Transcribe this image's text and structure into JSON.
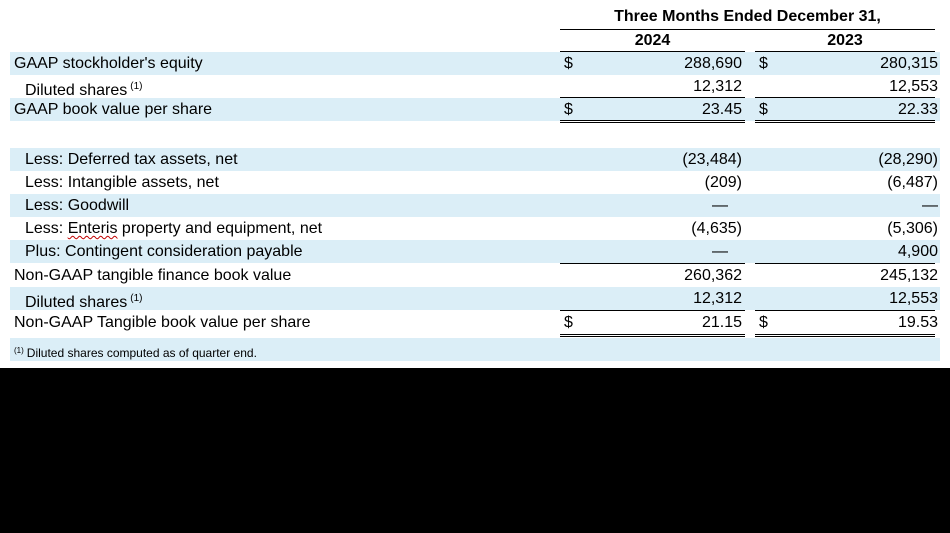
{
  "header": {
    "period": "Three Months Ended December 31,",
    "year1": "2024",
    "year2": "2023"
  },
  "rows": [
    {
      "label": "GAAP stockholder's equity",
      "sup": "",
      "dollar1": "$",
      "v1": "288,690",
      "dollar2": "$",
      "v2": "280,315"
    },
    {
      "label": "Diluted shares",
      "sup": "(1)",
      "dollar1": "",
      "v1": "12,312",
      "dollar2": "",
      "v2": "12,553"
    },
    {
      "label": "GAAP book value per share",
      "sup": "",
      "dollar1": "$",
      "v1": "23.45",
      "dollar2": "$",
      "v2": "22.33"
    },
    {
      "label": "Less: Deferred tax assets, net",
      "sup": "",
      "dollar1": "",
      "v1": "(23,484)",
      "dollar2": "",
      "v2": "(28,290)"
    },
    {
      "label": "Less: Intangible assets, net",
      "sup": "",
      "dollar1": "",
      "v1": "(209)",
      "dollar2": "",
      "v2": "(6,487)"
    },
    {
      "label": "Less: Goodwill",
      "sup": "",
      "dollar1": "",
      "v1": "—",
      "dollar2": "",
      "v2": "—"
    },
    {
      "label_pre": "Less: ",
      "label_word": "Enteris",
      "label_post": " property and equipment, net",
      "sup": "",
      "dollar1": "",
      "v1": "(4,635)",
      "dollar2": "",
      "v2": "(5,306)"
    },
    {
      "label": "Plus: Contingent consideration payable",
      "sup": "",
      "dollar1": "",
      "v1": "—",
      "dollar2": "",
      "v2": "4,900"
    },
    {
      "label": "Non-GAAP tangible finance book value",
      "sup": "",
      "dollar1": "",
      "v1": "260,362",
      "dollar2": "",
      "v2": "245,132"
    },
    {
      "label": "Diluted shares",
      "sup": "(1)",
      "dollar1": "",
      "v1": "12,312",
      "dollar2": "",
      "v2": "12,553"
    },
    {
      "label": "Non-GAAP Tangible book value per share",
      "sup": "",
      "dollar1": "$",
      "v1": "21.15",
      "dollar2": "$",
      "v2": "19.53"
    }
  ],
  "footnote": {
    "marker": "(1)",
    "text": "Diluted shares computed as of quarter end."
  },
  "colors": {
    "row_shade": "#dbeef7",
    "background": "#000000",
    "sheet": "#ffffff"
  }
}
